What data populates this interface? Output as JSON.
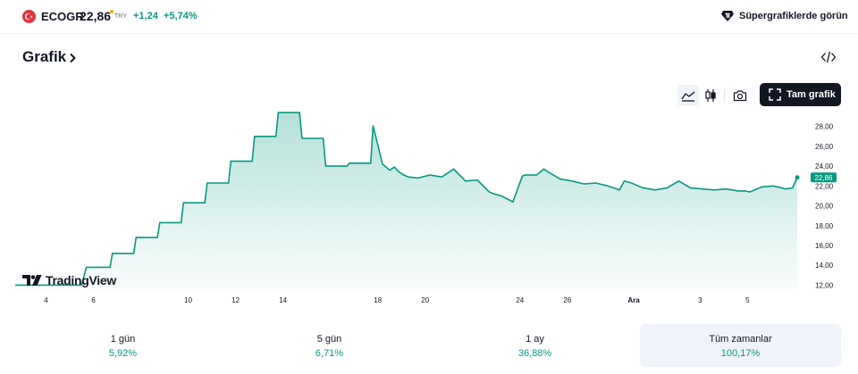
{
  "header": {
    "symbol": "ECOGR",
    "price": "22,86",
    "currency": "TRY",
    "change": "+1,24",
    "change_percent": "+5,74%",
    "supercharts_label": "Süpergrafiklerde görün",
    "flag_color": "#e0353f",
    "positive_color": "#089981"
  },
  "section": {
    "title": "Grafik",
    "embed_icon": "code-icon"
  },
  "toolbar": {
    "fullscreen_label": "Tam grafik",
    "icons": [
      "area-chart-icon",
      "candlestick-icon",
      "camera-icon",
      "fullscreen-icon"
    ]
  },
  "chart_data": {
    "type": "area",
    "title": "",
    "xlabel": "",
    "ylabel": "",
    "ylim": [
      11.5,
      29.5
    ],
    "y_ticks": [
      "28,00",
      "26,00",
      "24,00",
      "22,00",
      "20,00",
      "18,00",
      "16,00",
      "14,00",
      "12,00"
    ],
    "y_tick_values": [
      28,
      26,
      24,
      22,
      20,
      18,
      16,
      14,
      12
    ],
    "x_tick_labels": [
      "4",
      "6",
      "10",
      "12",
      "14",
      "18",
      "20",
      "24",
      "26",
      "Ara",
      "3",
      "5"
    ],
    "x_tick_positions": [
      3.3,
      5.3,
      9.3,
      11.3,
      13.3,
      17.3,
      19.3,
      23.3,
      25.3,
      28.1,
      30.9,
      32.9
    ],
    "x_range": [
      2.3,
      35.3
    ],
    "last_value_label": "22,86",
    "line_color": "#089981",
    "series": [
      {
        "x": [
          2,
          3,
          4,
          4.8,
          5,
          6,
          6.1,
          7,
          7.1,
          8,
          8.1,
          9,
          9.1,
          10,
          10.1,
          11,
          11.1,
          12,
          12.1,
          13,
          13.1,
          14,
          14.1,
          15,
          15.1,
          16,
          16.1,
          17,
          17.1,
          17.5,
          17.8,
          18,
          18.2,
          18.4,
          18.6,
          19,
          19.5,
          20,
          20.5,
          21,
          21.5,
          22,
          22.2,
          22.5,
          23,
          23.4,
          23.5,
          24,
          24.3,
          24.5,
          25,
          25.5,
          26,
          26.5,
          27,
          27.5,
          27.7,
          28,
          28.5,
          29,
          29.5,
          30,
          30.5,
          31,
          31.5,
          32,
          32.5,
          32.8,
          33,
          33.5,
          34,
          34.5,
          34.8,
          35
        ],
        "values": [
          12.0,
          12.0,
          12.0,
          12.0,
          13.8,
          13.8,
          15.2,
          15.2,
          16.8,
          16.8,
          18.3,
          18.3,
          20.3,
          20.3,
          22.3,
          22.3,
          24.5,
          24.5,
          27.0,
          27.0,
          29.4,
          29.4,
          26.8,
          26.8,
          24.0,
          24.0,
          24.3,
          24.3,
          28.1,
          24.2,
          23.6,
          23.9,
          23.4,
          23.1,
          22.9,
          22.8,
          23.1,
          22.9,
          23.7,
          22.5,
          22.6,
          21.4,
          21.2,
          21.0,
          20.4,
          23.0,
          23.1,
          23.1,
          23.7,
          23.4,
          22.7,
          22.5,
          22.2,
          22.3,
          22.0,
          21.6,
          22.5,
          22.3,
          21.8,
          21.6,
          21.8,
          22.5,
          21.8,
          21.7,
          21.6,
          21.7,
          21.5,
          21.5,
          21.4,
          21.9,
          22.0,
          21.7,
          21.8,
          22.86
        ]
      }
    ]
  },
  "branding": {
    "logo_text": "TradingView"
  },
  "stats": [
    {
      "label": "1 gün",
      "value": "5,92%",
      "active": false
    },
    {
      "label": "5 gün",
      "value": "6,71%",
      "active": false
    },
    {
      "label": "1 ay",
      "value": "36,88%",
      "active": false
    },
    {
      "label": "Tüm zamanlar",
      "value": "100,17%",
      "active": true
    }
  ]
}
